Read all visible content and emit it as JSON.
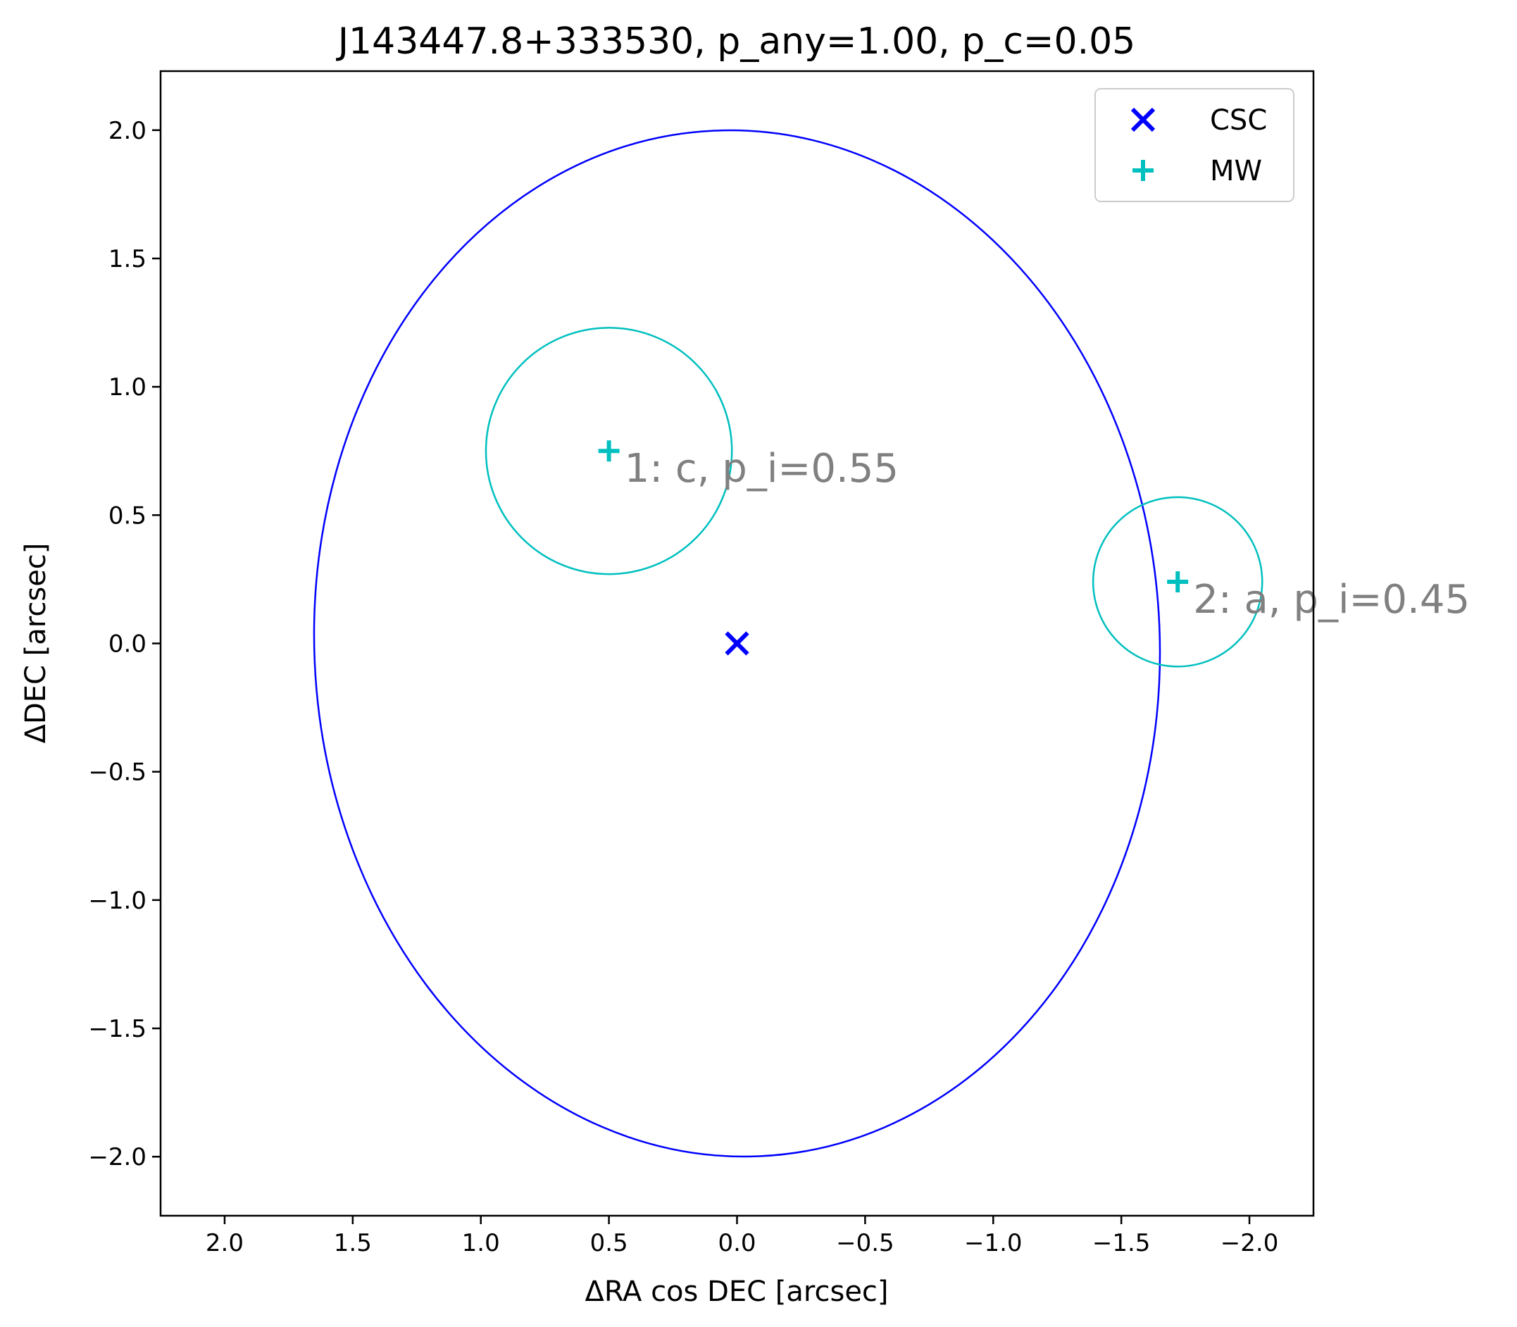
{
  "chart_data": {
    "type": "scatter",
    "title": "J143447.8+333530, p_any=1.00, p_c=0.05",
    "xlabel": "ΔRA cos DEC [arcsec]",
    "ylabel": "ΔDEC [arcsec]",
    "xlim": [
      2.25,
      -2.25
    ],
    "ylim": [
      -2.23,
      2.23
    ],
    "x_inverted": true,
    "grid": false,
    "legend_position": "top-right",
    "x_ticks": [
      2.0,
      1.5,
      1.0,
      0.5,
      0.0,
      -0.5,
      -1.0,
      -1.5,
      -2.0
    ],
    "x_tick_labels": [
      "2.0",
      "1.5",
      "1.0",
      "0.5",
      "0.0",
      "−0.5",
      "−1.0",
      "−1.5",
      "−2.0"
    ],
    "y_ticks": [
      2.0,
      1.5,
      1.0,
      0.5,
      0.0,
      -0.5,
      -1.0,
      -1.5,
      -2.0
    ],
    "y_tick_labels": [
      "2.0",
      "1.5",
      "1.0",
      "0.5",
      "0.0",
      "−0.5",
      "−1.0",
      "−1.5",
      "−2.0"
    ],
    "series": [
      {
        "name": "CSC",
        "marker": "x",
        "color": "#0000ff",
        "points": [
          {
            "x": 0.0,
            "y": 0.0
          }
        ]
      },
      {
        "name": "MW",
        "marker": "+",
        "color": "#00bfbf",
        "points": [
          {
            "x": 0.5,
            "y": 0.75,
            "label": "1: c, p_i=0.55"
          },
          {
            "x": -1.72,
            "y": 0.24,
            "label": "2: a, p_i=0.45"
          }
        ]
      }
    ],
    "ellipses": [
      {
        "series": "CSC",
        "color": "#0000ff",
        "cx": 0.0,
        "cy": 0.0,
        "semi_major": 2.0,
        "semi_minor": 1.65,
        "angle_deg": 2.5
      }
    ],
    "circles": [
      {
        "series": "MW",
        "color": "#00bfbf",
        "cx": 0.5,
        "cy": 0.75,
        "r": 0.48
      },
      {
        "series": "MW",
        "color": "#00bfbf",
        "cx": -1.72,
        "cy": 0.24,
        "r": 0.33
      }
    ]
  }
}
